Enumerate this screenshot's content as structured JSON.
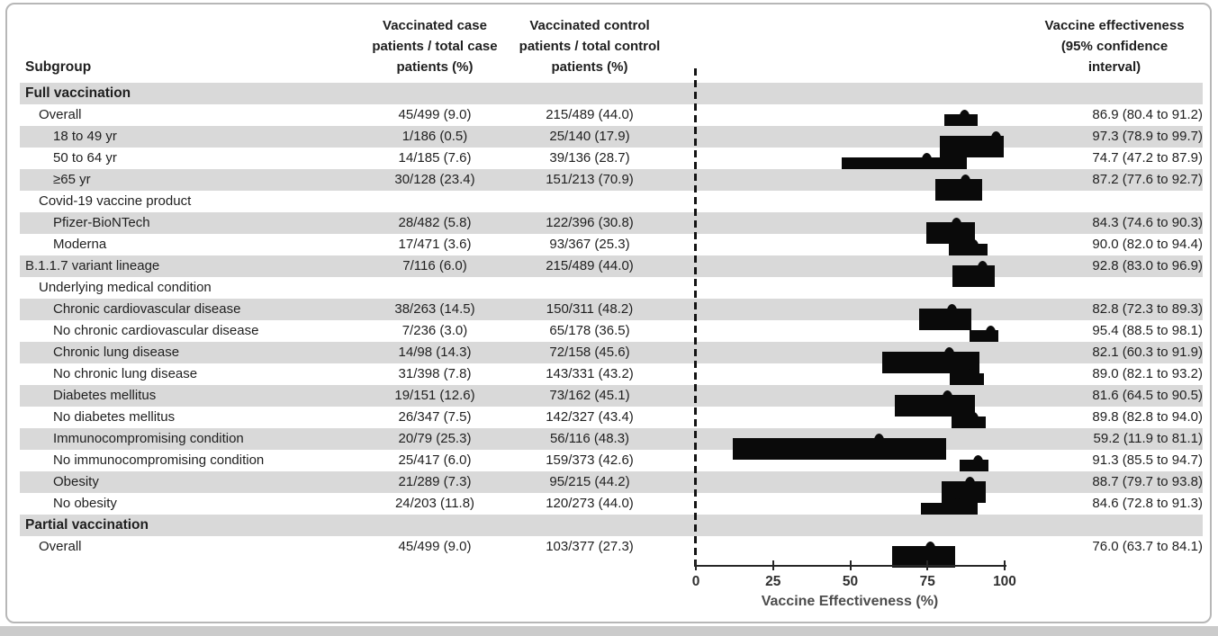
{
  "header": {
    "subgroup": "Subgroup",
    "case": "Vaccinated case\npatients / total case\npatients (%)",
    "control": "Vaccinated control\npatients / total control\npatients (%)",
    "effectiveness": "Vaccine effectiveness\n(95% confidence\ninterval)"
  },
  "colors": {
    "row_shade": "#d9d9d9",
    "marker": "#0a0a0a",
    "text": "#1f1f1f",
    "axis": "#262626",
    "card_border": "#b7b7b7",
    "page_strip": "#cbcbcb"
  },
  "chart_data": {
    "type": "forest",
    "xlabel": "Vaccine Effectiveness (%)",
    "xlim": [
      0,
      100
    ],
    "xticks": [
      0,
      25,
      50,
      75,
      100
    ],
    "reference_line": {
      "x": 0,
      "style": "dashed"
    },
    "grid": false,
    "rows": [
      {
        "label": "Full vaccination",
        "indent": 0,
        "bold": true,
        "shaded": true
      },
      {
        "label": "Overall",
        "indent": 1,
        "shaded": false,
        "case": "45/499 (9.0)",
        "control": "215/489 (44.0)",
        "ve_label": "86.9 (80.4 to 91.2)",
        "ve": 86.9,
        "lo": 80.4,
        "hi": 91.2
      },
      {
        "label": "18 to 49 yr",
        "indent": 2,
        "shaded": true,
        "case": "1/186 (0.5)",
        "control": "25/140 (17.9)",
        "ve_label": "97.3 (78.9 to 99.7)",
        "ve": 97.3,
        "lo": 78.9,
        "hi": 99.7
      },
      {
        "label": "50 to 64 yr",
        "indent": 2,
        "shaded": false,
        "case": "14/185 (7.6)",
        "control": "39/136 (28.7)",
        "ve_label": "74.7 (47.2 to 87.9)",
        "ve": 74.7,
        "lo": 47.2,
        "hi": 87.9
      },
      {
        "label": "≥65 yr",
        "indent": 2,
        "shaded": true,
        "case": "30/128 (23.4)",
        "control": "151/213 (70.9)",
        "ve_label": "87.2 (77.6 to 92.7)",
        "ve": 87.2,
        "lo": 77.6,
        "hi": 92.7
      },
      {
        "label": "Covid-19 vaccine product",
        "indent": 1,
        "shaded": false
      },
      {
        "label": "Pfizer-BioNTech",
        "indent": 2,
        "shaded": true,
        "case": "28/482 (5.8)",
        "control": "122/396 (30.8)",
        "ve_label": "84.3 (74.6 to 90.3)",
        "ve": 84.3,
        "lo": 74.6,
        "hi": 90.3
      },
      {
        "label": "Moderna",
        "indent": 2,
        "shaded": false,
        "case": "17/471 (3.6)",
        "control": "93/367 (25.3)",
        "ve_label": "90.0 (82.0 to 94.4)",
        "ve": 90.0,
        "lo": 82.0,
        "hi": 94.4
      },
      {
        "label": "B.1.1.7 variant lineage",
        "indent": 0,
        "shaded": true,
        "case": "7/116 (6.0)",
        "control": "215/489 (44.0)",
        "ve_label": "92.8 (83.0 to 96.9)",
        "ve": 92.8,
        "lo": 83.0,
        "hi": 96.9
      },
      {
        "label": "Underlying medical condition",
        "indent": 1,
        "shaded": false
      },
      {
        "label": "Chronic cardiovascular disease",
        "indent": 2,
        "shaded": true,
        "case": "38/263 (14.5)",
        "control": "150/311 (48.2)",
        "ve_label": "82.8 (72.3 to 89.3)",
        "ve": 82.8,
        "lo": 72.3,
        "hi": 89.3
      },
      {
        "label": "No chronic cardiovascular disease",
        "indent": 2,
        "shaded": false,
        "case": "7/236 (3.0)",
        "control": "65/178 (36.5)",
        "ve_label": "95.4 (88.5 to 98.1)",
        "ve": 95.4,
        "lo": 88.5,
        "hi": 98.1
      },
      {
        "label": "Chronic lung disease",
        "indent": 2,
        "shaded": true,
        "case": "14/98 (14.3)",
        "control": "72/158 (45.6)",
        "ve_label": "82.1 (60.3 to 91.9)",
        "ve": 82.1,
        "lo": 60.3,
        "hi": 91.9
      },
      {
        "label": "No chronic lung disease",
        "indent": 2,
        "shaded": false,
        "case": "31/398 (7.8)",
        "control": "143/331 (43.2)",
        "ve_label": "89.0 (82.1 to 93.2)",
        "ve": 89.0,
        "lo": 82.1,
        "hi": 93.2
      },
      {
        "label": "Diabetes mellitus",
        "indent": 2,
        "shaded": true,
        "case": "19/151 (12.6)",
        "control": "73/162 (45.1)",
        "ve_label": "81.6 (64.5 to 90.5)",
        "ve": 81.6,
        "lo": 64.5,
        "hi": 90.5
      },
      {
        "label": "No diabetes mellitus",
        "indent": 2,
        "shaded": false,
        "case": "26/347 (7.5)",
        "control": "142/327 (43.4)",
        "ve_label": "89.8 (82.8 to 94.0)",
        "ve": 89.8,
        "lo": 82.8,
        "hi": 94.0
      },
      {
        "label": "Immunocompromising condition",
        "indent": 2,
        "shaded": true,
        "case": "20/79 (25.3)",
        "control": "56/116 (48.3)",
        "ve_label": "59.2 (11.9 to 81.1)",
        "ve": 59.2,
        "lo": 11.9,
        "hi": 81.1
      },
      {
        "label": "No immunocompromising condition",
        "indent": 2,
        "shaded": false,
        "case": "25/417 (6.0)",
        "control": "159/373 (42.6)",
        "ve_label": "91.3 (85.5 to 94.7)",
        "ve": 91.3,
        "lo": 85.5,
        "hi": 94.7
      },
      {
        "label": "Obesity",
        "indent": 2,
        "shaded": true,
        "case": "21/289 (7.3)",
        "control": "95/215 (44.2)",
        "ve_label": "88.7 (79.7 to 93.8)",
        "ve": 88.7,
        "lo": 79.7,
        "hi": 93.8
      },
      {
        "label": "No obesity",
        "indent": 2,
        "shaded": false,
        "case": "24/203 (11.8)",
        "control": "120/273 (44.0)",
        "ve_label": "84.6 (72.8 to 91.3)",
        "ve": 84.6,
        "lo": 72.8,
        "hi": 91.3
      },
      {
        "label": "Partial vaccination",
        "indent": 0,
        "bold": true,
        "shaded": true
      },
      {
        "label": "Overall",
        "indent": 1,
        "shaded": false,
        "case": "45/499 (9.0)",
        "control": "103/377 (27.3)",
        "ve_label": "76.0 (63.7 to 84.1)",
        "ve": 76.0,
        "lo": 63.7,
        "hi": 84.1
      }
    ]
  }
}
